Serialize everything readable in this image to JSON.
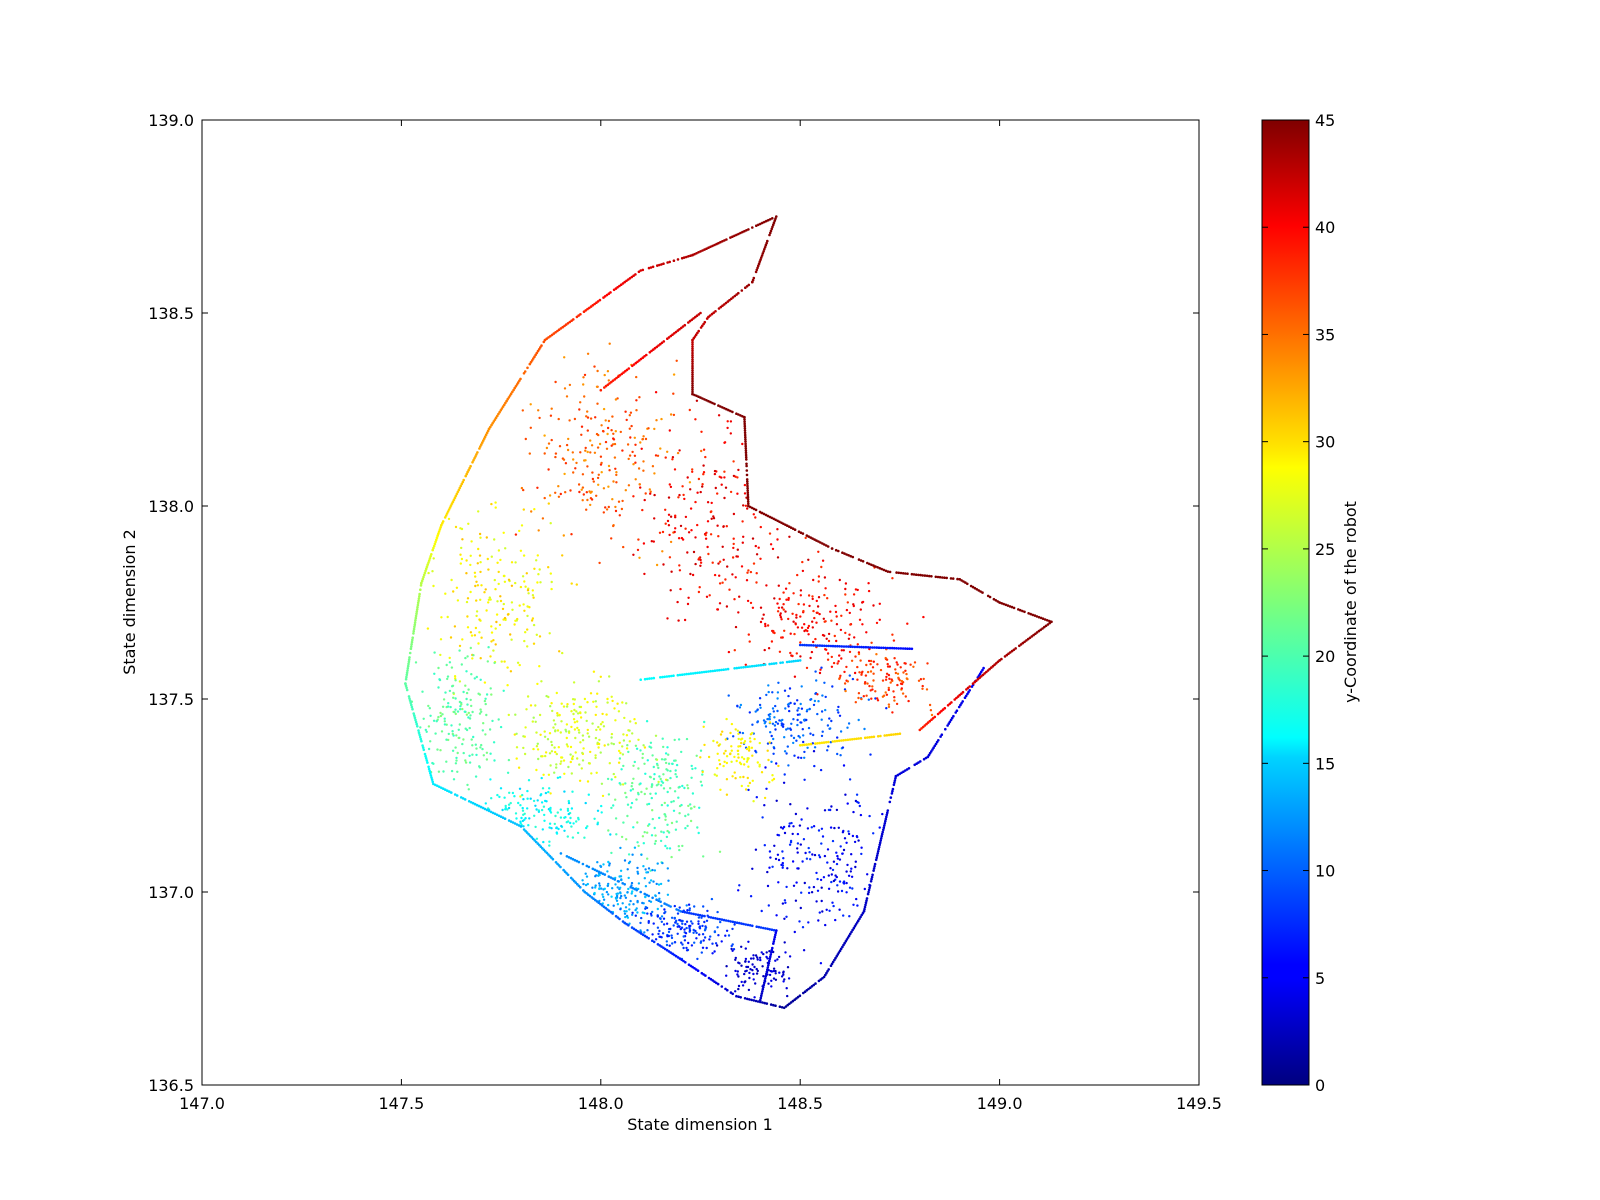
{
  "chart_data": {
    "type": "scatter",
    "title": "",
    "xlabel": "State dimension 1",
    "ylabel": "State dimension 2",
    "xlim": [
      147.0,
      149.5
    ],
    "ylim": [
      136.5,
      139.0
    ],
    "x_ticks": [
      "147.0",
      "147.5",
      "148.0",
      "148.5",
      "149.0",
      "149.5"
    ],
    "y_ticks": [
      "136.5",
      "137.0",
      "137.5",
      "138.0",
      "138.5",
      "139.0"
    ],
    "grid": false,
    "legend": "none",
    "colorbar": {
      "label": "y-Coordinate of the robot",
      "range": [
        0,
        45
      ],
      "ticks": [
        "0",
        "5",
        "10",
        "15",
        "20",
        "25",
        "30",
        "35",
        "40",
        "45"
      ],
      "colormap": "jet"
    },
    "boundary_outer": [
      [
        148.44,
        138.75,
        45
      ],
      [
        148.23,
        138.65,
        43
      ],
      [
        148.1,
        138.61,
        41
      ],
      [
        147.86,
        138.43,
        36
      ],
      [
        147.72,
        138.2,
        33
      ],
      [
        147.6,
        137.95,
        29
      ],
      [
        147.55,
        137.8,
        25
      ],
      [
        147.51,
        137.54,
        21
      ],
      [
        147.58,
        137.28,
        16
      ],
      [
        147.8,
        137.17,
        14
      ],
      [
        147.96,
        137.0,
        12
      ],
      [
        148.06,
        136.92,
        9
      ],
      [
        148.18,
        136.84,
        7
      ],
      [
        148.34,
        136.73,
        3
      ],
      [
        148.46,
        136.7,
        1
      ],
      [
        148.56,
        136.78,
        2
      ],
      [
        148.66,
        136.95,
        3
      ],
      [
        148.74,
        137.3,
        4
      ],
      [
        148.82,
        137.35,
        4
      ],
      [
        148.96,
        137.58,
        5
      ]
    ],
    "boundary_inner": [
      [
        148.44,
        138.75,
        45
      ],
      [
        148.38,
        138.58,
        44
      ],
      [
        148.27,
        138.49,
        42
      ],
      [
        148.23,
        138.43,
        42
      ],
      [
        148.23,
        138.29,
        45
      ],
      [
        148.36,
        138.23,
        45
      ],
      [
        148.37,
        138.0,
        45
      ],
      [
        148.58,
        137.89,
        45
      ],
      [
        148.72,
        137.83,
        45
      ],
      [
        148.9,
        137.81,
        45
      ],
      [
        149.0,
        137.75,
        45
      ],
      [
        149.13,
        137.7,
        45
      ],
      [
        149.0,
        137.6,
        43
      ],
      [
        148.8,
        137.42,
        38
      ]
    ],
    "inner_lines": [
      {
        "from": [
          147.9,
          137.1,
          12
        ],
        "to": [
          148.2,
          136.95,
          11
        ]
      },
      {
        "from": [
          148.2,
          136.95,
          8
        ],
        "to": [
          148.44,
          136.9,
          8
        ]
      },
      {
        "from": [
          148.44,
          136.9,
          5
        ],
        "to": [
          148.4,
          136.72,
          3
        ]
      },
      {
        "from": [
          148.1,
          137.55,
          17
        ],
        "to": [
          148.5,
          137.6,
          15
        ]
      },
      {
        "from": [
          148.5,
          137.64,
          8
        ],
        "to": [
          148.78,
          137.63,
          6
        ]
      },
      {
        "from": [
          148.5,
          137.38,
          29
        ],
        "to": [
          148.75,
          137.41,
          30
        ]
      },
      {
        "from": [
          148.0,
          138.3,
          38
        ],
        "to": [
          148.25,
          138.5,
          42
        ]
      }
    ],
    "scatter_regions": [
      {
        "center": [
          148.0,
          138.15
        ],
        "spread": [
          0.18,
          0.22
        ],
        "count": 240,
        "color_range": [
          32,
          38
        ]
      },
      {
        "center": [
          148.3,
          137.95
        ],
        "spread": [
          0.2,
          0.25
        ],
        "count": 260,
        "color_range": [
          37,
          42
        ]
      },
      {
        "center": [
          148.55,
          137.7
        ],
        "spread": [
          0.18,
          0.12
        ],
        "count": 180,
        "color_range": [
          37,
          41
        ]
      },
      {
        "center": [
          147.75,
          137.75
        ],
        "spread": [
          0.15,
          0.2
        ],
        "count": 200,
        "color_range": [
          26,
          31
        ]
      },
      {
        "center": [
          147.65,
          137.45
        ],
        "spread": [
          0.1,
          0.15
        ],
        "count": 180,
        "color_range": [
          19,
          23
        ]
      },
      {
        "center": [
          147.95,
          137.4
        ],
        "spread": [
          0.15,
          0.12
        ],
        "count": 220,
        "color_range": [
          24,
          29
        ]
      },
      {
        "center": [
          148.15,
          137.25
        ],
        "spread": [
          0.12,
          0.15
        ],
        "count": 200,
        "color_range": [
          18,
          23
        ]
      },
      {
        "center": [
          147.85,
          137.2
        ],
        "spread": [
          0.15,
          0.08
        ],
        "count": 160,
        "color_range": [
          15,
          19
        ]
      },
      {
        "center": [
          148.05,
          137.0
        ],
        "spread": [
          0.12,
          0.08
        ],
        "count": 180,
        "color_range": [
          11,
          15
        ]
      },
      {
        "center": [
          148.2,
          136.9
        ],
        "spread": [
          0.12,
          0.06
        ],
        "count": 180,
        "color_range": [
          6,
          10
        ]
      },
      {
        "center": [
          148.4,
          136.8
        ],
        "spread": [
          0.08,
          0.06
        ],
        "count": 100,
        "color_range": [
          2,
          5
        ]
      },
      {
        "center": [
          148.55,
          137.1
        ],
        "spread": [
          0.15,
          0.2
        ],
        "count": 220,
        "color_range": [
          3,
          8
        ]
      },
      {
        "center": [
          148.5,
          137.45
        ],
        "spread": [
          0.15,
          0.1
        ],
        "count": 180,
        "color_range": [
          7,
          12
        ]
      },
      {
        "center": [
          148.7,
          137.55
        ],
        "spread": [
          0.12,
          0.08
        ],
        "count": 120,
        "color_range": [
          34,
          39
        ]
      },
      {
        "center": [
          148.35,
          137.35
        ],
        "spread": [
          0.08,
          0.08
        ],
        "count": 100,
        "color_range": [
          27,
          30
        ]
      }
    ]
  }
}
